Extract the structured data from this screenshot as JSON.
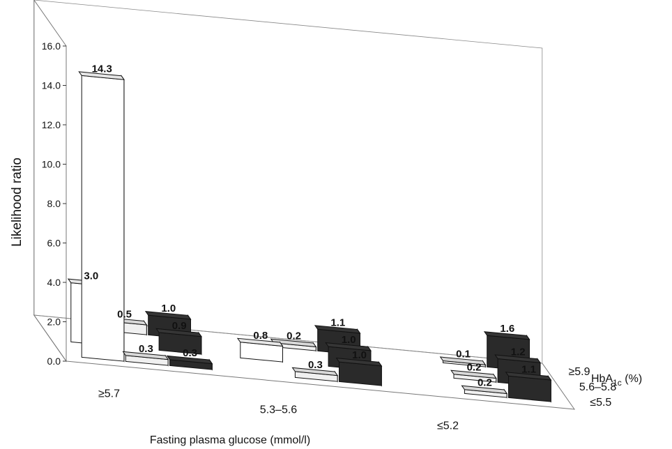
{
  "chart_data": {
    "type": "bar",
    "variant": "3d-grouped",
    "ylabel": "Likelihood ratio",
    "xlabel": "Fasting plasma glucose (mmol/l)",
    "zlabel_main": "HbA",
    "zlabel_sub": "1c",
    "zlabel_unit": " (%)",
    "ylim": [
      0,
      16
    ],
    "yticks": [
      "0.0",
      "2.0",
      "4.0",
      "6.0",
      "8.0",
      "10.0",
      "12.0",
      "14.0",
      "16.0"
    ],
    "x_categories": [
      "≥5.7",
      "5.3–5.6",
      "≤5.2"
    ],
    "z_categories": [
      "≥5.9",
      "5.6–5.8",
      "≤5.5"
    ],
    "series_fills": [
      "#ffffff",
      "#f0f0f0",
      "#2a2a2a"
    ],
    "bars": [
      {
        "fpg": 0,
        "hba1c": 0,
        "series": 0,
        "value": 14.3,
        "label": "14.3"
      },
      {
        "fpg": 0,
        "hba1c": 0,
        "series": 1,
        "value": 0.3,
        "label": "0.3"
      },
      {
        "fpg": 0,
        "hba1c": 0,
        "series": 2,
        "value": 0.3,
        "label": "0.3"
      },
      {
        "fpg": 0,
        "hba1c": 1,
        "series": 0,
        "value": 3.0,
        "label": "3.0"
      },
      {
        "fpg": 0,
        "hba1c": 1,
        "series": 2,
        "value": 0.9,
        "label": "0.9"
      },
      {
        "fpg": 0,
        "hba1c": 2,
        "series": 1,
        "value": 0.5,
        "label": "0.5"
      },
      {
        "fpg": 0,
        "hba1c": 2,
        "series": 2,
        "value": 1.0,
        "label": "1.0"
      },
      {
        "fpg": 1,
        "hba1c": 0,
        "series": 1,
        "value": 0.3,
        "label": "0.3"
      },
      {
        "fpg": 1,
        "hba1c": 0,
        "series": 2,
        "value": 1.0,
        "label": "1.0"
      },
      {
        "fpg": 1,
        "hba1c": 1,
        "series": 0,
        "value": 0.8,
        "label": "0.8"
      },
      {
        "fpg": 1,
        "hba1c": 1,
        "series": 2,
        "value": 1.0,
        "label": "1.0"
      },
      {
        "fpg": 1,
        "hba1c": 2,
        "series": 1,
        "value": 0.2,
        "label": "0.2"
      },
      {
        "fpg": 1,
        "hba1c": 2,
        "series": 2,
        "value": 1.1,
        "label": "1.1"
      },
      {
        "fpg": 2,
        "hba1c": 0,
        "series": 1,
        "value": 0.2,
        "label": "0.2"
      },
      {
        "fpg": 2,
        "hba1c": 0,
        "series": 2,
        "value": 1.1,
        "label": "1.1"
      },
      {
        "fpg": 2,
        "hba1c": 1,
        "series": 1,
        "value": 0.2,
        "label": "0.2"
      },
      {
        "fpg": 2,
        "hba1c": 1,
        "series": 2,
        "value": 1.2,
        "label": "1.2"
      },
      {
        "fpg": 2,
        "hba1c": 2,
        "series": 1,
        "value": 0.1,
        "label": "0.1"
      },
      {
        "fpg": 2,
        "hba1c": 2,
        "series": 2,
        "value": 1.6,
        "label": "1.6"
      }
    ]
  }
}
